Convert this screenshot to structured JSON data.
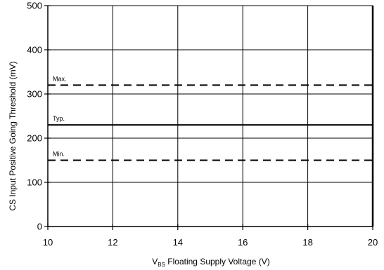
{
  "chart_data": {
    "type": "line",
    "title": "",
    "xlabel_main": "V",
    "xlabel_sub": "BS",
    "xlabel_rest": " Floating Supply Voltage (V)",
    "ylabel": "CS Input Positive Going Threshold (mV)",
    "xlim": [
      10,
      20
    ],
    "ylim": [
      0,
      500
    ],
    "x_ticks": [
      10,
      12,
      14,
      16,
      18,
      20
    ],
    "y_ticks": [
      0,
      100,
      200,
      300,
      400,
      500
    ],
    "grid": true,
    "series": [
      {
        "name": "Max.",
        "style": "dashed",
        "x": [
          10,
          20
        ],
        "y": [
          320,
          320
        ]
      },
      {
        "name": "Typ.",
        "style": "solid",
        "x": [
          10,
          20
        ],
        "y": [
          230,
          230
        ]
      },
      {
        "name": "Min.",
        "style": "dashed",
        "x": [
          10,
          20
        ],
        "y": [
          150,
          150
        ]
      }
    ]
  }
}
